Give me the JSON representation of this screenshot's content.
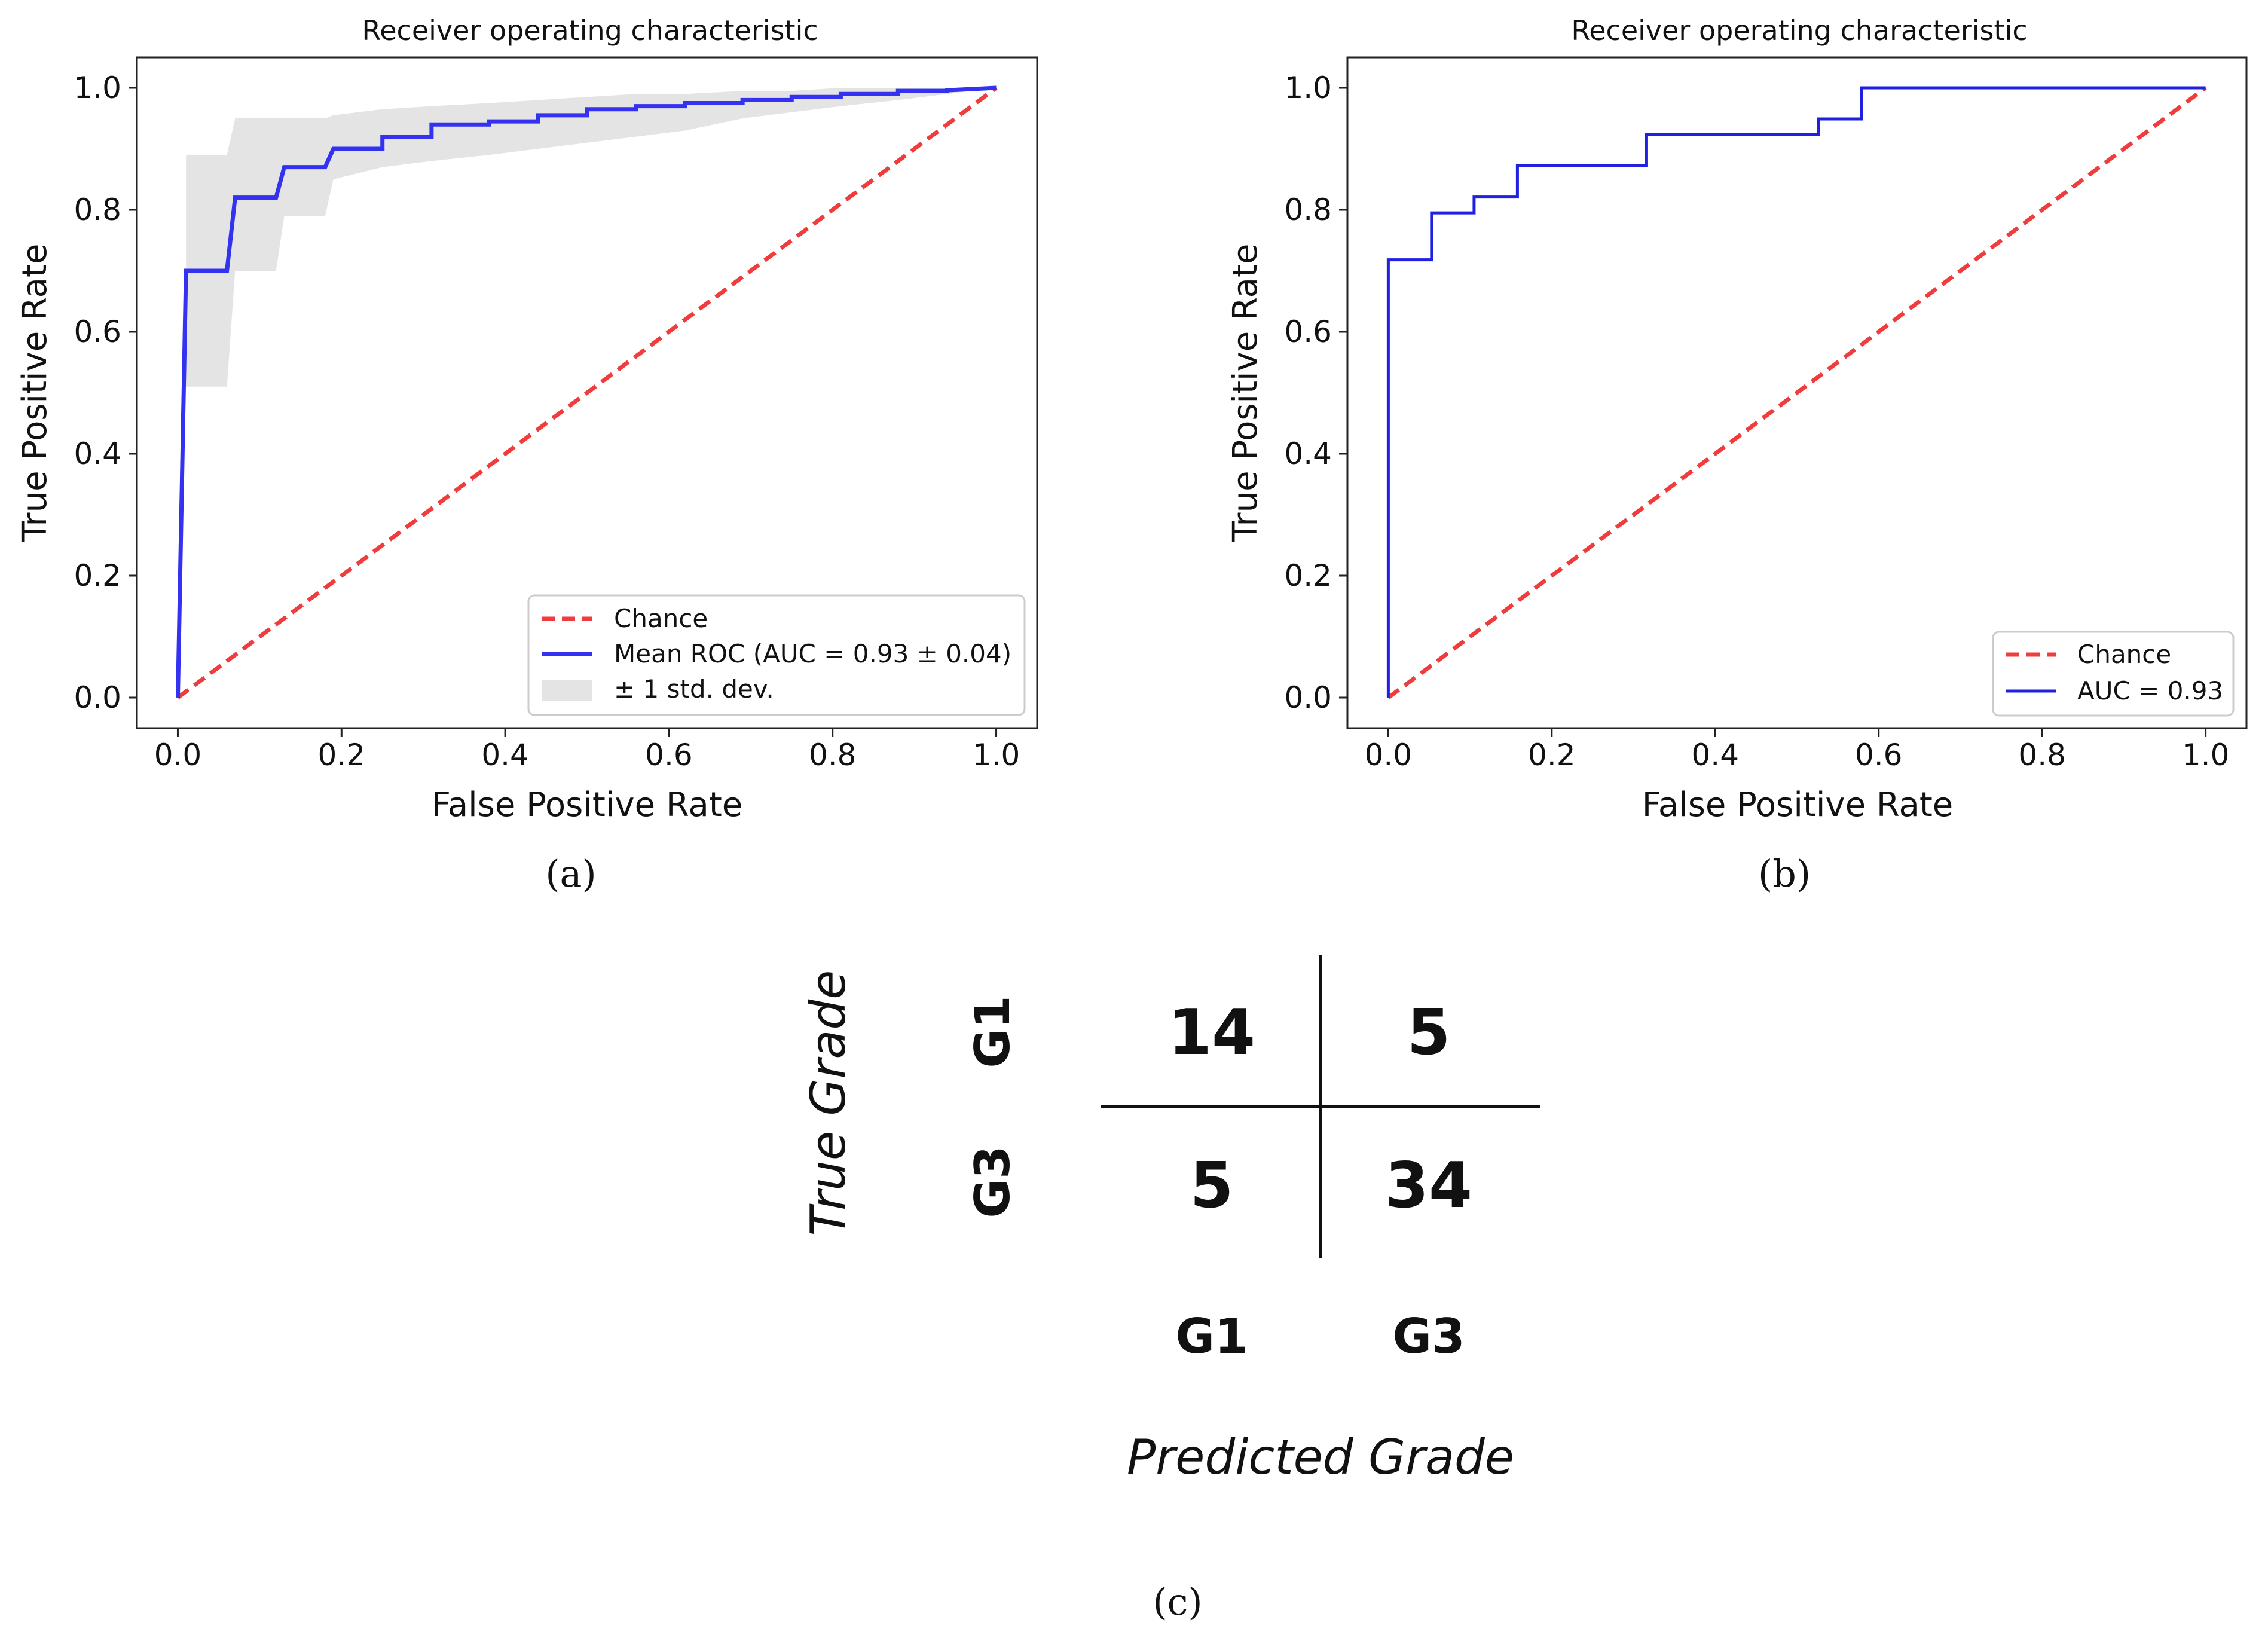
{
  "chart_data": [
    {
      "panel": "a",
      "type": "line",
      "title": "Receiver operating characteristic",
      "xlabel": "False Positive Rate",
      "ylabel": "True Positive Rate",
      "xlim": [
        -0.05,
        1.05
      ],
      "ylim": [
        -0.05,
        1.05
      ],
      "xticks": [
        "0.0",
        "0.2",
        "0.4",
        "0.6",
        "0.8",
        "1.0"
      ],
      "yticks": [
        "0.0",
        "0.2",
        "0.4",
        "0.6",
        "0.8",
        "1.0"
      ],
      "legend_location": "lower-right",
      "legend": [
        "Chance",
        "Mean ROC (AUC = 0.93 ± 0.04)",
        "± 1 std. dev."
      ],
      "colors": {
        "chance": "#f03c3c",
        "roc": "#3232f0",
        "band": "#e4e4e4"
      },
      "series": [
        {
          "name": "Chance",
          "x": [
            0,
            1
          ],
          "y": [
            0,
            1
          ]
        },
        {
          "name": "Mean ROC (AUC = 0.93 ± 0.04)",
          "x": [
            0,
            0.01,
            0.06,
            0.07,
            0.12,
            0.13,
            0.18,
            0.19,
            0.25,
            0.25,
            0.31,
            0.31,
            0.38,
            0.38,
            0.44,
            0.44,
            0.5,
            0.5,
            0.56,
            0.56,
            0.62,
            0.62,
            0.69,
            0.69,
            0.75,
            0.75,
            0.81,
            0.81,
            0.88,
            0.88,
            0.94,
            0.94,
            1.0
          ],
          "y": [
            0,
            0.7,
            0.7,
            0.82,
            0.82,
            0.87,
            0.87,
            0.9,
            0.9,
            0.92,
            0.92,
            0.94,
            0.94,
            0.945,
            0.945,
            0.955,
            0.955,
            0.965,
            0.965,
            0.97,
            0.97,
            0.975,
            0.975,
            0.98,
            0.98,
            0.985,
            0.985,
            0.99,
            0.99,
            0.995,
            0.995,
            0.996,
            1.0
          ]
        },
        {
          "name": "± 1 std. dev.",
          "x": [
            0.01,
            0.06,
            0.07,
            0.12,
            0.13,
            0.18,
            0.19,
            0.25,
            0.31,
            0.38,
            0.44,
            0.5,
            0.56,
            0.62,
            0.69,
            0.75,
            0.81,
            0.88,
            0.94,
            1.0
          ],
          "upper": [
            0.89,
            0.89,
            0.95,
            0.95,
            0.95,
            0.95,
            0.955,
            0.965,
            0.97,
            0.975,
            0.98,
            0.985,
            0.99,
            0.99,
            0.995,
            0.995,
            1.0,
            1.0,
            1.0,
            1.0
          ],
          "lower": [
            0.51,
            0.51,
            0.7,
            0.7,
            0.79,
            0.79,
            0.85,
            0.87,
            0.88,
            0.89,
            0.9,
            0.91,
            0.92,
            0.93,
            0.95,
            0.96,
            0.97,
            0.98,
            0.99,
            1.0
          ]
        }
      ]
    },
    {
      "panel": "b",
      "type": "line",
      "title": "Receiver operating characteristic",
      "xlabel": "False Positive Rate",
      "ylabel": "True Positive Rate",
      "xlim": [
        -0.05,
        1.05
      ],
      "ylim": [
        -0.05,
        1.05
      ],
      "xticks": [
        "0.0",
        "0.2",
        "0.4",
        "0.6",
        "0.8",
        "1.0"
      ],
      "yticks": [
        "0.0",
        "0.2",
        "0.4",
        "0.6",
        "0.8",
        "1.0"
      ],
      "legend_location": "lower-right",
      "legend": [
        "Chance",
        "AUC = 0.93"
      ],
      "colors": {
        "chance": "#f03c3c",
        "roc": "#2020e0"
      },
      "series": [
        {
          "name": "Chance",
          "x": [
            0,
            1
          ],
          "y": [
            0,
            1
          ]
        },
        {
          "name": "AUC = 0.93",
          "x": [
            0,
            0,
            0.053,
            0.053,
            0.105,
            0.105,
            0.158,
            0.158,
            0.316,
            0.316,
            0.526,
            0.526,
            0.579,
            0.579,
            1.0
          ],
          "y": [
            0,
            0.718,
            0.718,
            0.795,
            0.795,
            0.821,
            0.821,
            0.872,
            0.872,
            0.923,
            0.923,
            0.949,
            0.949,
            1.0,
            1.0
          ]
        }
      ]
    },
    {
      "panel": "c",
      "type": "table",
      "ylabel": "True Grade",
      "xlabel": "Predicted Grade",
      "row_labels": [
        "G1",
        "G3"
      ],
      "col_labels": [
        "G1",
        "G3"
      ],
      "values": [
        [
          "14",
          "5"
        ],
        [
          "5",
          "34"
        ]
      ]
    }
  ],
  "panel_labels": [
    "(a)",
    "(b)",
    "(c)"
  ]
}
